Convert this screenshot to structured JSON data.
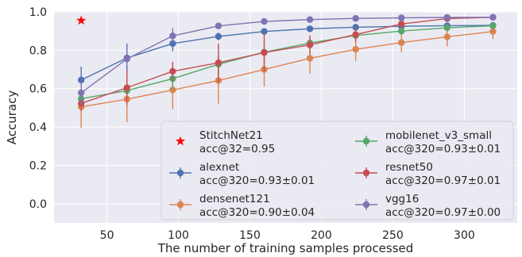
{
  "chart_data": {
    "type": "line",
    "title": "",
    "xlabel": "The number of training samples processed",
    "ylabel": "Accuracy",
    "xlim": [
      13,
      337
    ],
    "ylim": [
      -0.1,
      1.0
    ],
    "xticks": [
      50,
      100,
      150,
      200,
      250,
      300
    ],
    "yticks": [
      0.0,
      0.2,
      0.4,
      0.6,
      0.8,
      1.0
    ],
    "xtick_labels": [
      "50",
      "100",
      "150",
      "200",
      "250",
      "300"
    ],
    "ytick_labels": [
      "0.0",
      "0.2",
      "0.4",
      "0.6",
      "0.8",
      "1.0"
    ],
    "grid": true,
    "legend_position": "lower-right",
    "x": [
      32,
      64,
      96,
      128,
      160,
      192,
      224,
      256,
      288,
      320
    ],
    "series": [
      {
        "name": "alexnet",
        "legend_line1": "alexnet",
        "legend_line2": "acc@320=0.93±0.01",
        "color": "#4c72b0",
        "values": [
          0.645,
          0.76,
          0.835,
          0.872,
          0.898,
          0.912,
          0.92,
          0.925,
          0.928,
          0.93
        ],
        "errors": [
          0.07,
          0.075,
          0.04,
          0.02,
          0.015,
          0.012,
          0.01,
          0.01,
          0.01,
          0.01
        ]
      },
      {
        "name": "densenet121",
        "legend_line1": "densenet121",
        "legend_line2": "acc@320=0.90±0.04",
        "color": "#dd8452",
        "values": [
          0.505,
          0.545,
          0.593,
          0.642,
          0.7,
          0.758,
          0.805,
          0.84,
          0.87,
          0.898
        ],
        "errors": [
          0.11,
          0.12,
          0.1,
          0.12,
          0.09,
          0.08,
          0.06,
          0.05,
          0.05,
          0.04
        ]
      },
      {
        "name": "mobilenet_v3_small",
        "legend_line1": "mobilenet_v3_small",
        "legend_line2": "acc@320=0.93±0.01",
        "color": "#55a868",
        "values": [
          0.547,
          0.59,
          0.652,
          0.727,
          0.79,
          0.838,
          0.877,
          0.9,
          0.917,
          0.928
        ],
        "errors": [
          0.06,
          0.05,
          0.06,
          0.05,
          0.04,
          0.03,
          0.02,
          0.02,
          0.015,
          0.01
        ]
      },
      {
        "name": "resnet50",
        "legend_line1": "resnet50",
        "legend_line2": "acc@320=0.97±0.01",
        "color": "#c44e52",
        "values": [
          0.523,
          0.605,
          0.69,
          0.735,
          0.788,
          0.828,
          0.882,
          0.937,
          0.965,
          0.972
        ],
        "errors": [
          0.04,
          0.09,
          0.05,
          0.1,
          0.1,
          0.05,
          0.04,
          0.02,
          0.015,
          0.01
        ]
      },
      {
        "name": "vgg16",
        "legend_line1": "vgg16",
        "legend_line2": "acc@320=0.97±0.00",
        "color": "#8172b3",
        "values": [
          0.578,
          0.755,
          0.875,
          0.927,
          0.95,
          0.96,
          0.966,
          0.969,
          0.971,
          0.972
        ],
        "errors": [
          0.06,
          0.04,
          0.04,
          0.015,
          0.01,
          0.008,
          0.005,
          0.004,
          0.003,
          0.003
        ]
      }
    ],
    "highlight": {
      "name": "StitchNet21",
      "legend_line1": "StitchNet21",
      "legend_line2": "acc@32=0.95",
      "color": "#ff0000",
      "marker": "star",
      "x": 32,
      "y": 0.955
    },
    "legend_order": [
      "StitchNet21",
      "alexnet",
      "densenet121",
      "mobilenet_v3_small",
      "resnet50",
      "vgg16"
    ]
  }
}
